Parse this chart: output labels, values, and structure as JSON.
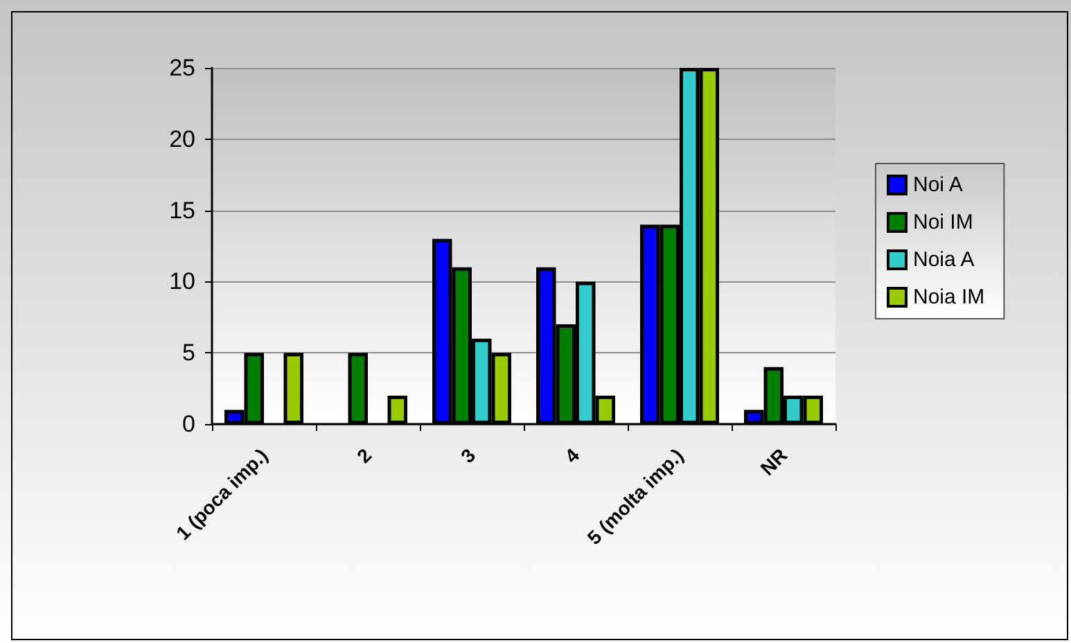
{
  "chart_data": {
    "type": "bar",
    "categories": [
      "1 (poca imp.)",
      "2",
      "3",
      "4",
      "5 (molta imp.)",
      "NR"
    ],
    "series": [
      {
        "name": "Noi A",
        "color": "#0000ff",
        "values": [
          1,
          0,
          13,
          11,
          14,
          1
        ]
      },
      {
        "name": "Noi IM",
        "color": "#008000",
        "values": [
          5,
          5,
          11,
          7,
          14,
          4
        ]
      },
      {
        "name": "Noia A",
        "color": "#33cccc",
        "values": [
          0,
          0,
          6,
          10,
          25,
          2
        ]
      },
      {
        "name": "Noia IM",
        "color": "#99cc00",
        "values": [
          5,
          2,
          5,
          2,
          25,
          2
        ]
      }
    ],
    "ylim": [
      0,
      25
    ],
    "yticks": [
      0,
      5,
      10,
      15,
      20,
      25
    ],
    "grid": "y",
    "legend": "right"
  }
}
